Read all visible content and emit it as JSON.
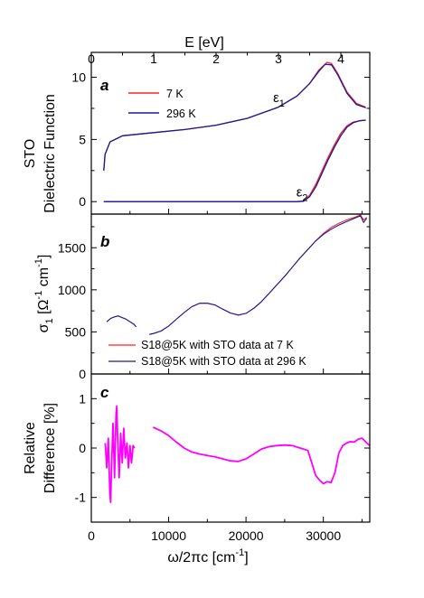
{
  "figure": {
    "top_axis_label": "E [eV]",
    "bottom_axis_label": "ω/2πc [cm",
    "bottom_axis_label_sup": "-1",
    "bottom_axis_label_end": "]"
  },
  "chart_data": [
    {
      "panel": "a",
      "type": "line",
      "ylabel_line1": "STO",
      "ylabel_line2": "Dielectric Function",
      "xlim_cm": [
        0,
        36000
      ],
      "top_x_ticks_eV": [
        "0",
        "1",
        "2",
        "3",
        "4"
      ],
      "ylim": [
        -1.0,
        12.0
      ],
      "y_ticks": [
        "0",
        "5",
        "10"
      ],
      "annotations": [
        {
          "text": "ε",
          "sub": "1",
          "x_cm": 23500,
          "y": 8.0
        },
        {
          "text": "ε",
          "sub": "2",
          "x_cm": 26500,
          "y": 0.4
        }
      ],
      "series": [
        {
          "name": "7 K",
          "color": "#ff2020",
          "eps1": {
            "x_eV": [
              0.2,
              0.22,
              0.3,
              0.5,
              1.0,
              1.5,
              2.0,
              2.5,
              3.0,
              3.3,
              3.5,
              3.65,
              3.78,
              3.85,
              3.95,
              4.1,
              4.25,
              4.4
            ],
            "y": [
              2.5,
              3.8,
              4.8,
              5.3,
              5.55,
              5.8,
              6.15,
              6.7,
              7.6,
              8.5,
              9.5,
              10.6,
              11.2,
              11.1,
              10.3,
              8.8,
              7.9,
              7.6
            ]
          },
          "eps2": {
            "x_eV": [
              0.2,
              3.3,
              3.4,
              3.5,
              3.6,
              3.7,
              3.8,
              3.9,
              4.0,
              4.1,
              4.2,
              4.3,
              4.4
            ],
            "y": [
              0,
              0,
              0.05,
              0.5,
              1.4,
              2.5,
              3.6,
              4.6,
              5.5,
              6.1,
              6.4,
              6.5,
              6.55
            ]
          }
        },
        {
          "name": "296 K",
          "color": "#1a1a9a",
          "eps1": {
            "x_eV": [
              0.2,
              0.22,
              0.3,
              0.5,
              1.0,
              1.5,
              2.0,
              2.5,
              3.0,
              3.3,
              3.5,
              3.65,
              3.75,
              3.85,
              3.95,
              4.1,
              4.25,
              4.4
            ],
            "y": [
              2.5,
              3.8,
              4.8,
              5.3,
              5.55,
              5.8,
              6.15,
              6.7,
              7.6,
              8.5,
              9.5,
              10.5,
              11.05,
              11.0,
              10.2,
              8.7,
              7.8,
              7.55
            ]
          },
          "eps2": {
            "x_eV": [
              0.2,
              3.3,
              3.4,
              3.5,
              3.6,
              3.7,
              3.8,
              3.9,
              4.0,
              4.1,
              4.2,
              4.3,
              4.4
            ],
            "y": [
              0,
              0,
              0.03,
              0.4,
              1.2,
              2.3,
              3.4,
              4.4,
              5.3,
              6.0,
              6.35,
              6.5,
              6.55
            ]
          }
        }
      ]
    },
    {
      "panel": "b",
      "type": "line",
      "ylabel": "σ",
      "ylabel_sub": "1",
      "ylabel_unit_open": " [Ω",
      "ylabel_sup1": "-1",
      "ylabel_mid": " cm",
      "ylabel_sup2": "-1",
      "ylabel_close": "]",
      "xlim_cm": [
        0,
        36000
      ],
      "ylim": [
        0,
        1900
      ],
      "y_ticks": [
        "0",
        "500",
        "1000",
        "1500"
      ],
      "series": [
        {
          "name": "S18@5K with STO data at 7 K",
          "color": "#ff2020",
          "segments": [
            {
              "x": [
                2000,
                2500,
                3000,
                3500,
                4000,
                4500,
                5000,
                5500,
                5800
              ],
              "y": [
                620,
                660,
                680,
                690,
                670,
                650,
                620,
                590,
                560
              ]
            },
            {
              "x": [
                7500,
                8000,
                9000,
                10000,
                11000,
                12000,
                13000,
                14000,
                15000,
                16000,
                17000,
                18000,
                19000,
                20000,
                21000,
                22000,
                23000,
                24000,
                25000,
                26000,
                27000,
                28000,
                29000,
                30000,
                31000,
                32000,
                33000,
                34000,
                34800,
                35200,
                35600
              ],
              "y": [
                470,
                480,
                510,
                570,
                650,
                730,
                800,
                840,
                840,
                820,
                770,
                725,
                700,
                720,
                780,
                860,
                960,
                1060,
                1160,
                1270,
                1380,
                1480,
                1580,
                1670,
                1740,
                1790,
                1830,
                1860,
                1890,
                1830,
                1860
              ]
            }
          ]
        },
        {
          "name": "S18@5K with STO data at 296 K",
          "color": "#1a1a9a",
          "segments": [
            {
              "x": [
                2000,
                2500,
                3000,
                3500,
                4000,
                4500,
                5000,
                5500,
                5800
              ],
              "y": [
                620,
                660,
                680,
                690,
                670,
                650,
                620,
                590,
                560
              ]
            },
            {
              "x": [
                7500,
                8000,
                9000,
                10000,
                11000,
                12000,
                13000,
                14000,
                15000,
                16000,
                17000,
                18000,
                19000,
                20000,
                21000,
                22000,
                23000,
                24000,
                25000,
                26000,
                27000,
                28000,
                29000,
                30000,
                31000,
                32000,
                33000,
                34000,
                34800,
                35200,
                35600
              ],
              "y": [
                470,
                480,
                510,
                570,
                650,
                730,
                800,
                840,
                840,
                820,
                770,
                725,
                700,
                720,
                780,
                860,
                960,
                1060,
                1160,
                1270,
                1380,
                1480,
                1580,
                1660,
                1720,
                1770,
                1810,
                1850,
                1880,
                1800,
                1850
              ]
            }
          ]
        }
      ]
    },
    {
      "panel": "c",
      "type": "line",
      "ylabel_line1": "Relative",
      "ylabel_line2": "Difference [%]",
      "xlim_cm": [
        0,
        36000
      ],
      "x_ticks": [
        "0",
        "10000",
        "20000",
        "30000"
      ],
      "ylim": [
        -1.5,
        1.5
      ],
      "y_ticks": [
        "-1",
        "0",
        "1"
      ],
      "series": [
        {
          "name": "Relative Difference",
          "color": "#ff00ff",
          "segments": [
            {
              "x": [
                1800,
                2000,
                2200,
                2400,
                2500,
                2600,
                2800,
                3000,
                3200,
                3300,
                3400,
                3600,
                3800,
                4000,
                4200,
                4400,
                4600,
                4800,
                5000,
                5200,
                5400,
                5600
              ],
              "y": [
                0.1,
                -0.4,
                0.2,
                -0.9,
                -1.1,
                -0.5,
                0.5,
                -0.6,
                0.7,
                0.85,
                0.2,
                -0.6,
                0.3,
                -0.3,
                0.4,
                -0.2,
                0.1,
                -0.4,
                0.05,
                -0.3,
                0.05,
                0.0
              ]
            },
            {
              "x": [
                8000,
                9000,
                10000,
                11000,
                12000,
                13000,
                14000,
                15000,
                16000,
                17000,
                18000,
                19000,
                20000,
                21000,
                22000,
                23000,
                24000,
                25000,
                26000,
                27000,
                28000,
                29000,
                29500,
                30000,
                30500,
                31000,
                31500,
                32000,
                32500,
                33000,
                33500,
                34000,
                34500,
                35000,
                35500,
                36000
              ],
              "y": [
                0.42,
                0.35,
                0.25,
                0.12,
                0.0,
                -0.08,
                -0.12,
                -0.15,
                -0.18,
                -0.22,
                -0.26,
                -0.27,
                -0.22,
                -0.12,
                -0.02,
                0.03,
                0.05,
                0.06,
                0.05,
                0.0,
                -0.05,
                -0.55,
                -0.65,
                -0.72,
                -0.68,
                -0.7,
                -0.5,
                -0.1,
                0.05,
                0.1,
                0.13,
                0.12,
                0.18,
                0.2,
                0.12,
                0.05
              ]
            }
          ]
        }
      ]
    }
  ]
}
